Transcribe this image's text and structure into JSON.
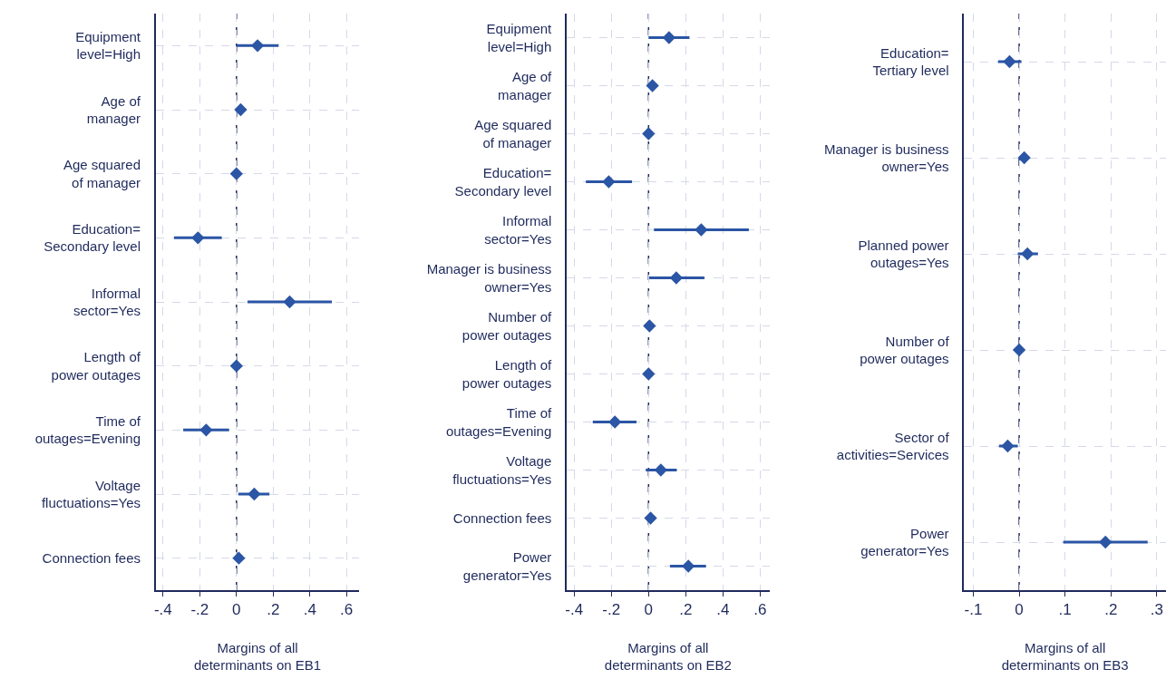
{
  "chart_data": [
    {
      "type": "scatter",
      "orientation": "horizontal",
      "xlabel": "Margins of all\ndeterminants on EB1",
      "marker": "diamond",
      "grid": true,
      "color": "#2b55a5",
      "categories": [
        "Equipment\nlevel=High",
        "Age of\nmanager",
        "Age squared\nof manager",
        "Education=\nSecondary level",
        "Informal\nsector=Yes",
        "Length of\npower outages",
        "Time of\noutages=Evening",
        "Voltage\nfluctuations=Yes",
        "Connection fees"
      ],
      "values": [
        0.115,
        0.023,
        0,
        -0.21,
        0.29,
        0,
        -0.165,
        0.097,
        0.013
      ],
      "errors": [
        [
          0.0,
          0.23
        ],
        null,
        null,
        [
          -0.34,
          -0.08
        ],
        [
          0.06,
          0.52
        ],
        null,
        [
          -0.29,
          -0.04
        ],
        [
          0.01,
          0.18
        ],
        null
      ],
      "xlim": [
        -0.44,
        0.67
      ],
      "xticks": [
        {
          "value": -0.4,
          "label": "-.4"
        },
        {
          "value": -0.2,
          "label": "-.2"
        },
        0,
        {
          "value": 0.2,
          "label": ".2"
        },
        {
          "value": 0.4,
          "label": ".4"
        },
        {
          "value": 0.6,
          "label": ".6"
        }
      ],
      "ref_lines": [
        {
          "axis": "x",
          "value": 0,
          "color": "#1f2a5c",
          "line_style": "dashed"
        }
      ]
    },
    {
      "type": "scatter",
      "orientation": "horizontal",
      "xlabel": "Margins of all\ndeterminants on EB2",
      "marker": "diamond",
      "grid": true,
      "color": "#2b55a5",
      "categories": [
        "Equipment\nlevel=High",
        "Age of\nmanager",
        "Age squared\nof manager",
        "Education=\nSecondary level",
        "Informal\nsector=Yes",
        "Manager is business\nowner=Yes",
        "Number of\npower outages",
        "Length of\npower outages",
        "Time of\noutages=Evening",
        "Voltage\nfluctuations=Yes",
        "Connection fees",
        "Power\ngenerator=Yes"
      ],
      "values": [
        0.11,
        0.021,
        0,
        -0.214,
        0.283,
        0.149,
        0.005,
        0,
        -0.181,
        0.066,
        0.011,
        0.214
      ],
      "errors": [
        [
          0.0,
          0.22
        ],
        null,
        null,
        [
          -0.337,
          -0.089
        ],
        [
          0.029,
          0.539
        ],
        [
          0.003,
          0.3
        ],
        null,
        null,
        [
          -0.3,
          -0.065
        ],
        [
          -0.015,
          0.152
        ],
        null,
        [
          0.115,
          0.309
        ]
      ],
      "xlim": [
        -0.44,
        0.65
      ],
      "xticks": [
        {
          "value": -0.4,
          "label": "-.4"
        },
        {
          "value": -0.2,
          "label": "-.2"
        },
        0,
        {
          "value": 0.2,
          "label": ".2"
        },
        {
          "value": 0.4,
          "label": ".4"
        },
        {
          "value": 0.6,
          "label": ".6"
        }
      ],
      "ref_lines": [
        {
          "axis": "x",
          "value": 0,
          "color": "#1f2a5c",
          "line_style": "dashed"
        }
      ]
    },
    {
      "type": "scatter",
      "orientation": "horizontal",
      "xlabel": "Margins of all\ndeterminants on EB3",
      "marker": "diamond",
      "grid": true,
      "color": "#2b55a5",
      "categories": [
        "Education=\nTertiary level",
        "Manager is business\nowner=Yes",
        "Planned power\noutages=Yes",
        "Number of\npower outages",
        "Sector of\nactivities=Services",
        "Power\ngenerator=Yes"
      ],
      "values": [
        -0.021,
        0.011,
        0.018,
        0,
        -0.025,
        0.188
      ],
      "errors": [
        [
          -0.046,
          0.005
        ],
        null,
        [
          -0.003,
          0.041
        ],
        null,
        [
          -0.044,
          -0.003
        ],
        [
          0.096,
          0.28
        ]
      ],
      "xlim": [
        -0.12,
        0.32
      ],
      "xticks": [
        {
          "value": -0.1,
          "label": "-.1"
        },
        0,
        {
          "value": 0.1,
          "label": ".1"
        },
        {
          "value": 0.2,
          "label": ".2"
        },
        {
          "value": 0.3,
          "label": ".3"
        }
      ],
      "ref_lines": [
        {
          "axis": "x",
          "value": 0,
          "color": "#1f2a5c",
          "line_style": "dashed"
        }
      ]
    }
  ]
}
